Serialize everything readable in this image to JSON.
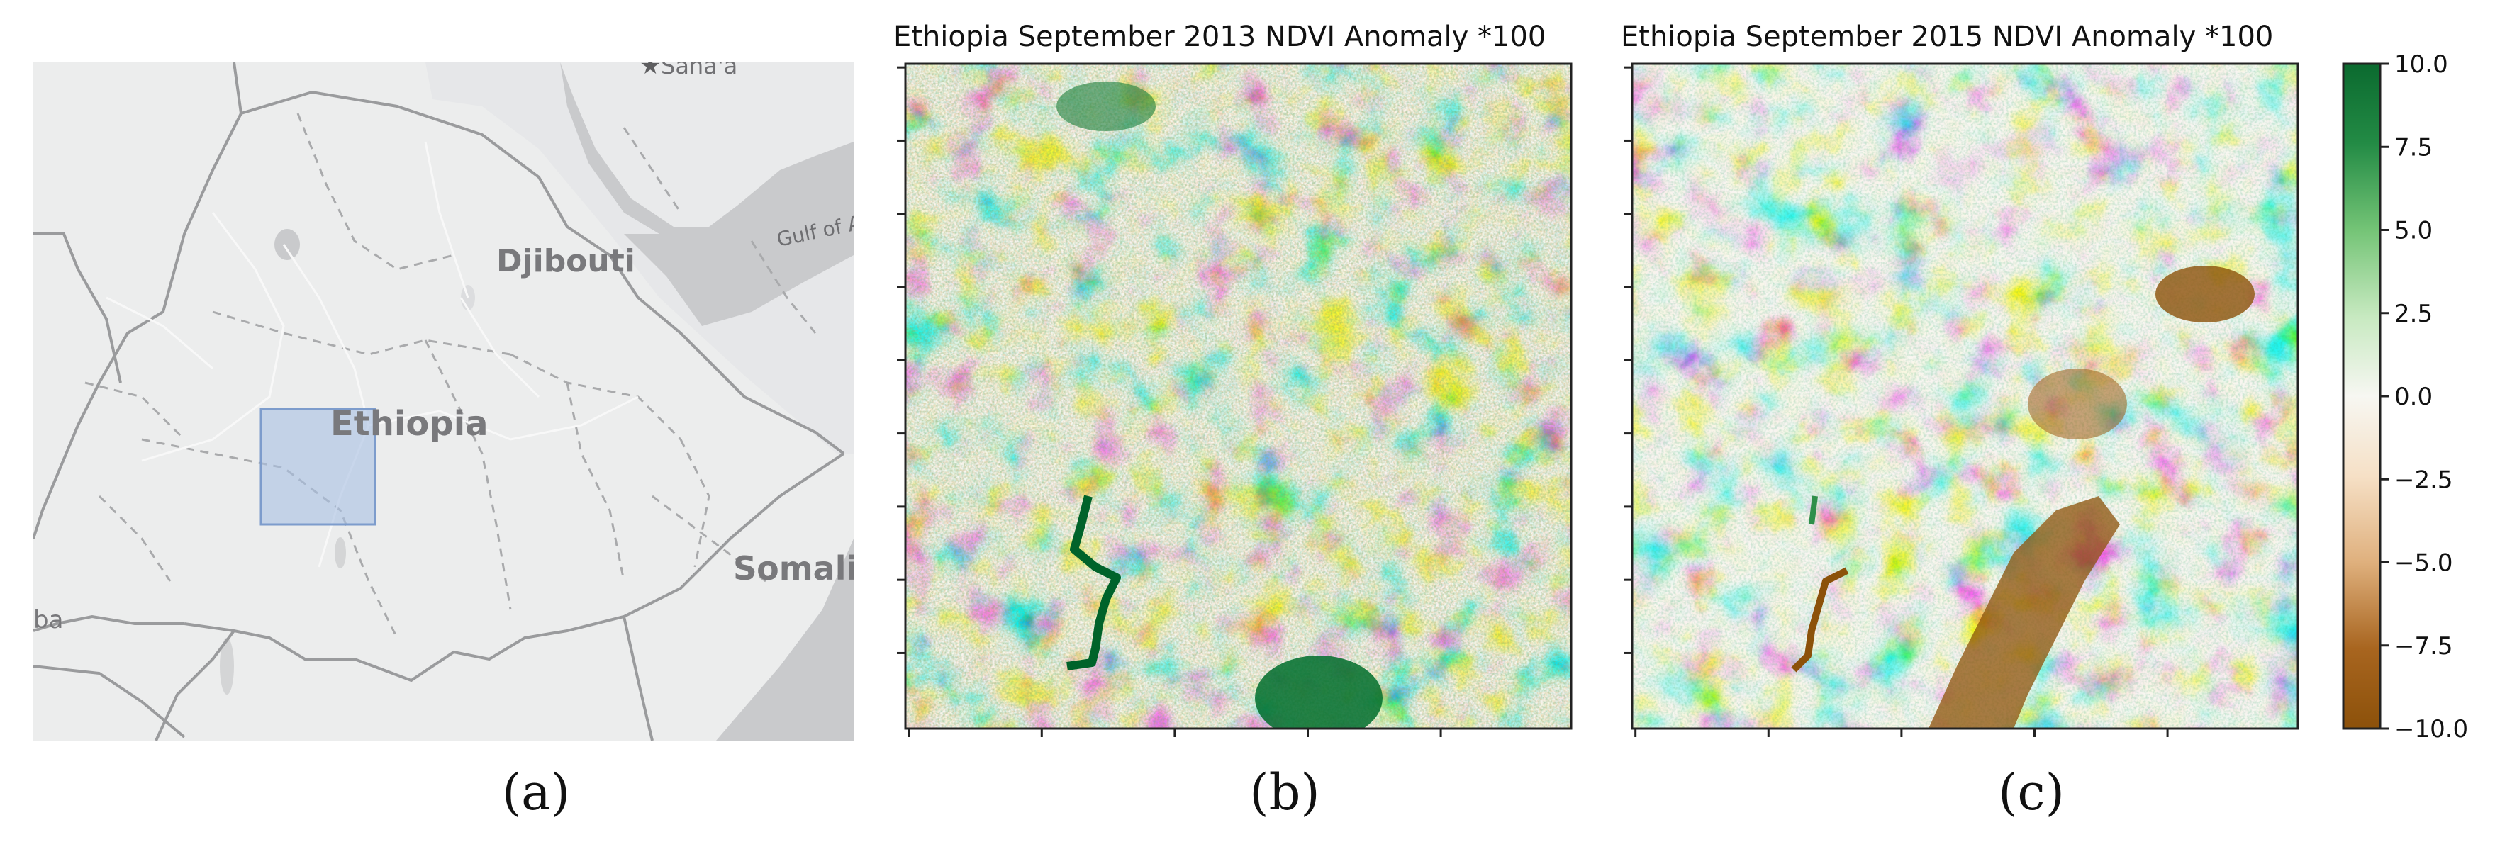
{
  "panel_a": {
    "map_labels": {
      "sanaa": "Sana'a",
      "djibouti": "Djibouti",
      "gulf": "Gulf of A",
      "ethiopia": "Ethiopia",
      "somalia": "Somali",
      "ba": "ba"
    },
    "caption": "(a)"
  },
  "panel_b": {
    "title": "Ethiopia September 2013 NDVI Anomaly *100",
    "caption": "(b)"
  },
  "panel_c": {
    "title": "Ethiopia September 2015 NDVI Anomaly *100",
    "caption": "(c)"
  },
  "colorbar": {
    "colormap": "BrBG",
    "range": [
      -10.0,
      10.0
    ],
    "tick_values": [
      10.0,
      7.5,
      5.0,
      2.5,
      0.0,
      -2.5,
      -5.0,
      -7.5,
      -10.0
    ],
    "tick_labels": [
      "10.0",
      "7.5",
      "5.0",
      "2.5",
      "0.0",
      "−2.5",
      "−5.0",
      "−7.5",
      "−10.0"
    ],
    "colors": {
      "high": "#0b6a2f",
      "mid_high": "#74c476",
      "zero": "#f5f5f0",
      "mid_low": "#dfc27d",
      "low": "#8c510a"
    }
  }
}
